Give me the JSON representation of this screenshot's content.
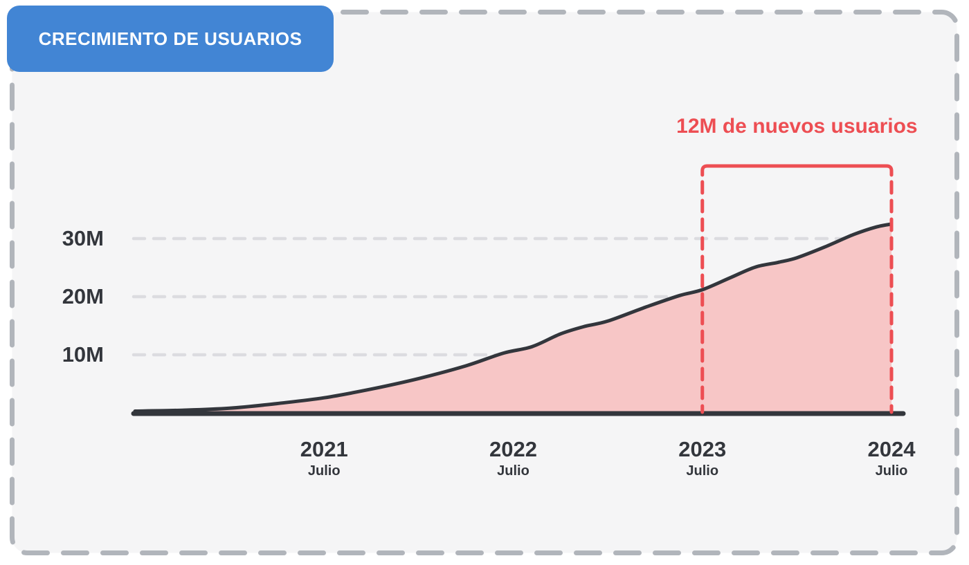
{
  "badge": {
    "label": "CRECIMIENTO DE USUARIOS",
    "bg_color": "#4285d4",
    "text_color": "#ffffff"
  },
  "annotation": {
    "label": "12M de nuevos usuarios",
    "color": "#ed4e53"
  },
  "colors": {
    "page_bg": "#ffffff",
    "panel_bg": "#f5f5f6",
    "panel_border": "#b1b5bb",
    "line_dark": "#33363c",
    "area_fill": "#f7c6c6",
    "grid": "#dcdce0",
    "accent_red": "#ed4e53",
    "text_dark": "#33363c"
  },
  "chart_data": {
    "type": "area",
    "title": "CRECIMIENTO DE USUARIOS",
    "unit": "M",
    "grid": true,
    "xlim": [
      2020.5,
      2024.5
    ],
    "ylim": [
      0,
      35
    ],
    "series": [
      {
        "name": "Usuarios",
        "x": [
          2020.5,
          2020.75,
          2021.0,
          2021.25,
          2021.5,
          2021.75,
          2022.0,
          2022.25,
          2022.45,
          2022.6,
          2022.75,
          2022.88,
          2023.0,
          2023.2,
          2023.38,
          2023.5,
          2023.65,
          2023.78,
          2023.9,
          2024.0,
          2024.15,
          2024.3,
          2024.42,
          2024.5
        ],
        "values": [
          0.3,
          0.45,
          0.8,
          1.6,
          2.6,
          4.1,
          5.9,
          8.1,
          10.3,
          11.4,
          13.6,
          14.9,
          15.8,
          18.2,
          20.2,
          21.2,
          23.3,
          25.1,
          25.9,
          26.7,
          28.6,
          30.7,
          32.0,
          32.5
        ]
      }
    ],
    "y_ticks": [
      {
        "label": "30M",
        "value": 30
      },
      {
        "label": "20M",
        "value": 20
      },
      {
        "label": "10M",
        "value": 10
      }
    ],
    "x_ticks": [
      {
        "year": "2021",
        "month": "Julio",
        "t": 2021.5
      },
      {
        "year": "2022",
        "month": "Julio",
        "t": 2022.5
      },
      {
        "year": "2023",
        "month": "Julio",
        "t": 2023.5
      },
      {
        "year": "2024",
        "month": "Julio",
        "t": 2024.5
      }
    ],
    "annotation": {
      "label": "12M de nuevos usuarios",
      "from_t": 2023.5,
      "to_t": 2024.5,
      "from_value": 21,
      "to_value": 32.5,
      "delta_value": 12
    }
  }
}
